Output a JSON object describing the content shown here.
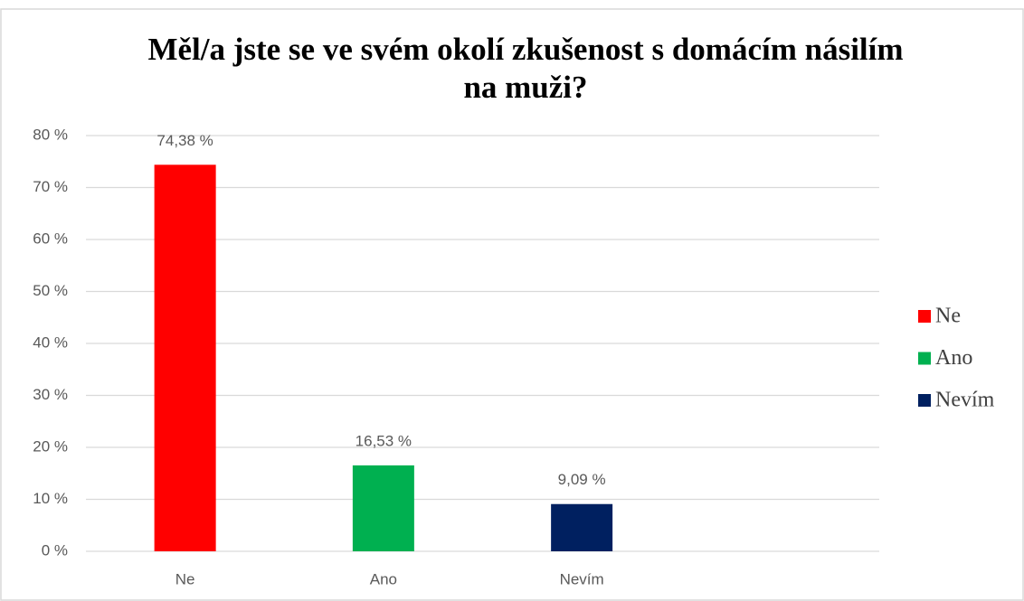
{
  "chart_data": {
    "type": "bar",
    "title": "Měl/a jste se ve svém okolí zkušenost s domácím násilím na muži?",
    "categories": [
      "Ne",
      "Ano",
      "Nevím",
      null
    ],
    "values": [
      74.38,
      16.53,
      9.09,
      null
    ],
    "value_labels": [
      "74,38 %",
      "16,53 %",
      "9,09 %",
      null
    ],
    "colors": [
      "#ff0000",
      "#00b050",
      "#002060"
    ],
    "ylim": [
      0,
      80
    ],
    "yticks": [
      {
        "value": 0,
        "label": "0 %"
      },
      {
        "value": 10,
        "label": "10 %"
      },
      {
        "value": 20,
        "label": "20 %"
      },
      {
        "value": 30,
        "label": "30 %"
      },
      {
        "value": 40,
        "label": "40 %"
      },
      {
        "value": 50,
        "label": "50 %"
      },
      {
        "value": 60,
        "label": "60 %"
      },
      {
        "value": 70,
        "label": "70 %"
      },
      {
        "value": 80,
        "label": "80 %"
      }
    ],
    "grid": true,
    "legend": "right"
  }
}
